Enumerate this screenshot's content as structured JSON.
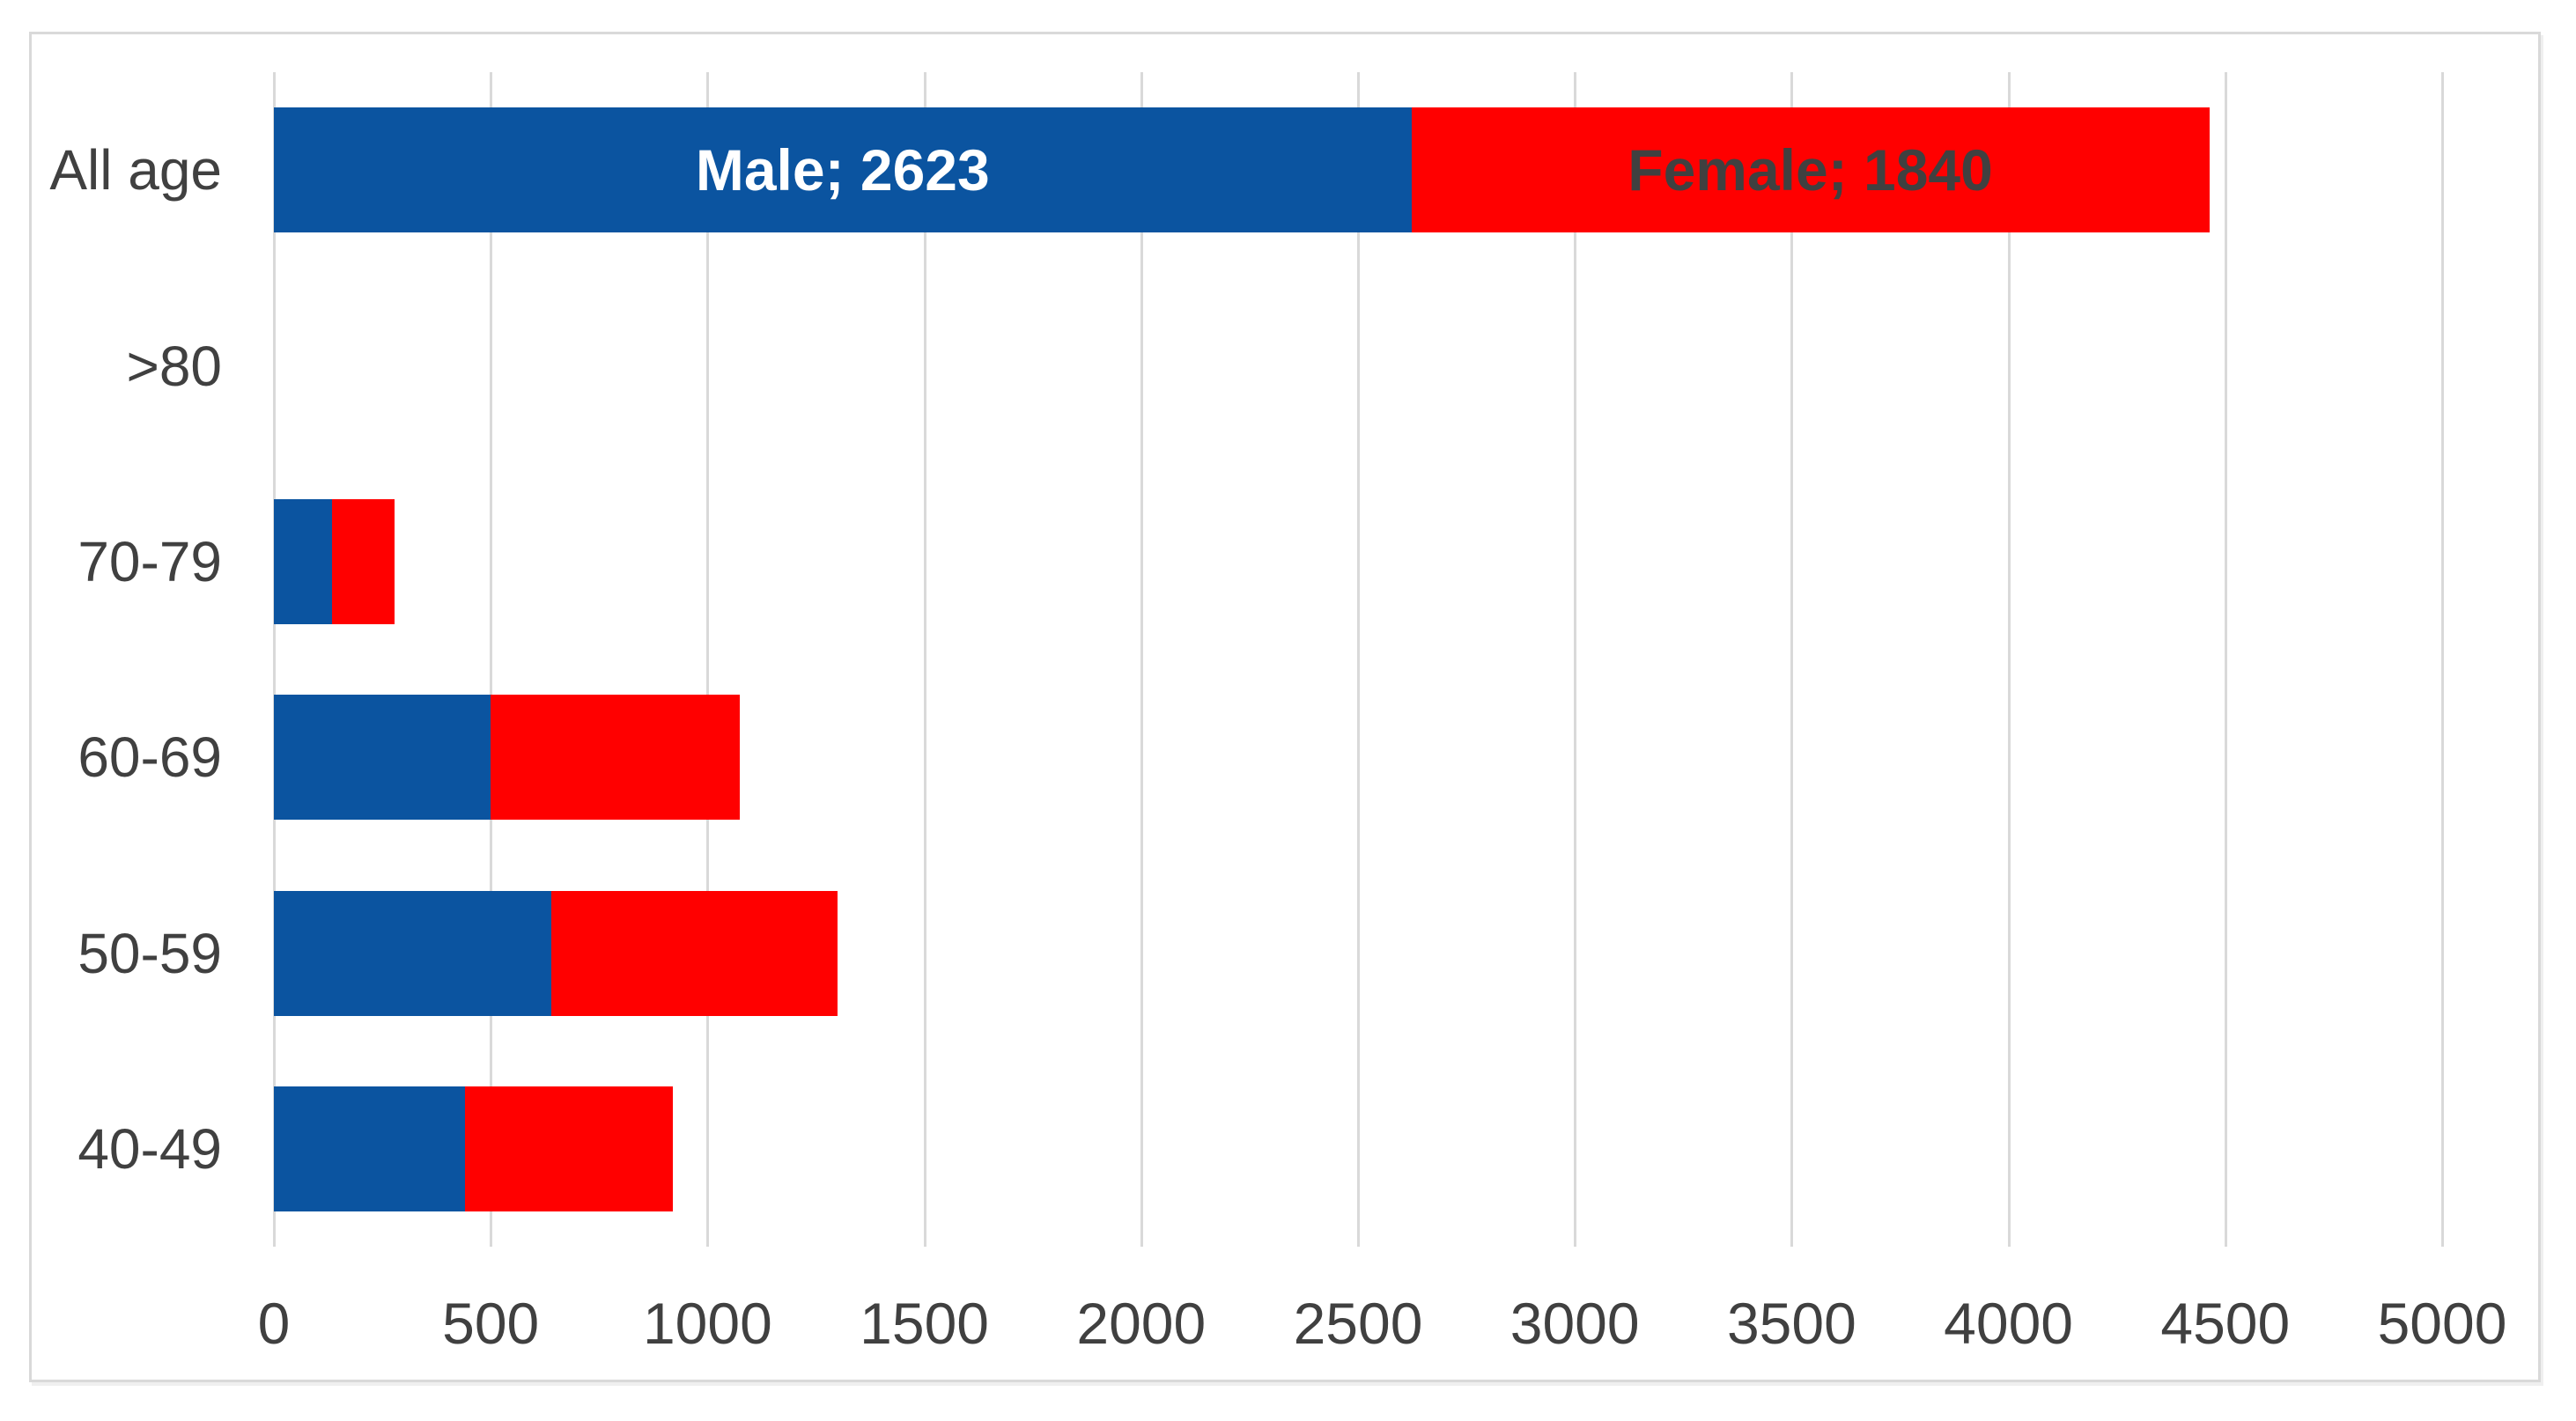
{
  "chart_data": {
    "type": "bar",
    "orientation": "horizontal",
    "stacked": true,
    "title": "",
    "categories": [
      "All age",
      ">80",
      "70-79",
      "60-69",
      "50-59",
      "40-49"
    ],
    "series": [
      {
        "name": "Male",
        "color": "#0B54A0",
        "values": [
          2623,
          0,
          135,
          500,
          640,
          440
        ]
      },
      {
        "name": "Female",
        "color": "#FF0000",
        "values": [
          1840,
          0,
          143,
          575,
          660,
          480
        ]
      }
    ],
    "data_labels": [
      {
        "category_index": 0,
        "series_index": 0,
        "text": "Male; 2623",
        "color": "#FFFFFF"
      },
      {
        "category_index": 0,
        "series_index": 1,
        "text": "Female; 1840",
        "color": "#404040"
      }
    ],
    "xlim": [
      0,
      5000
    ],
    "x_ticks": [
      0,
      500,
      1000,
      1500,
      2000,
      2500,
      3000,
      3500,
      4000,
      4500,
      5000
    ],
    "x_tick_labels": [
      "0",
      "500",
      "1000",
      "1500",
      "2000",
      "2500",
      "3000",
      "3500",
      "4000",
      "4500",
      "5000"
    ],
    "grid": "vertical",
    "legend": "none",
    "colors": {
      "gridline": "#D9D9D9",
      "axis_text": "#404040",
      "frame_border": "#D9D9D9",
      "background": "#FFFFFF"
    }
  }
}
